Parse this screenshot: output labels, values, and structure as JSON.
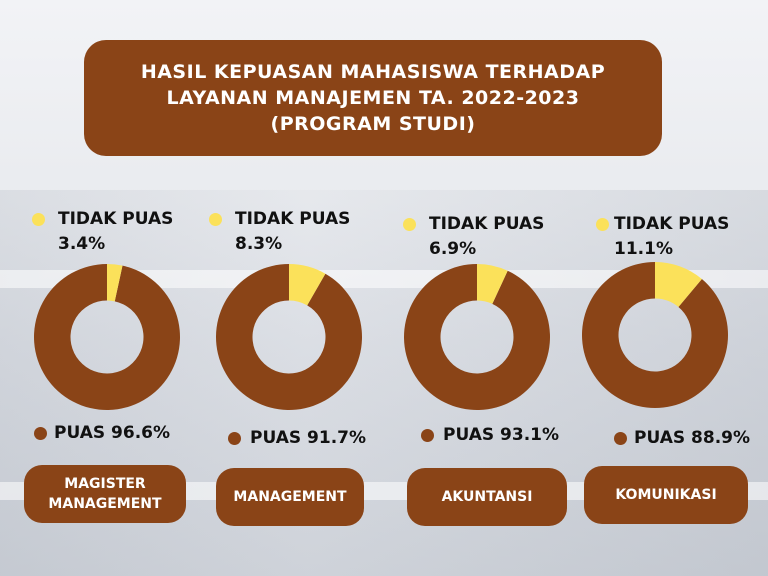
{
  "title": {
    "lines": [
      "HASIL KEPUASAN MAHASISWA TERHADAP",
      "LAYANAN MANAJEMEN TA. 2022-2023",
      "(PROGRAM STUDI)"
    ]
  },
  "colors": {
    "puas": "#8a4417",
    "tidak_puas": "#fbe15a",
    "box": "#8a4417"
  },
  "chart_data": [
    {
      "type": "pie",
      "category": "MAGISTER MANAGEMENT",
      "category_lines": [
        "MAGISTER",
        "MANAGEMENT"
      ],
      "slices": [
        {
          "name": "PUAS",
          "value": 96.6,
          "label": "PUAS 96.6%"
        },
        {
          "name": "TIDAK PUAS",
          "value": 3.4,
          "label": "3.4%"
        }
      ]
    },
    {
      "type": "pie",
      "category": "MANAGEMENT",
      "category_lines": [
        "MANAGEMENT"
      ],
      "slices": [
        {
          "name": "PUAS",
          "value": 91.7,
          "label": "PUAS 91.7%"
        },
        {
          "name": "TIDAK PUAS",
          "value": 8.3,
          "label": "8.3%"
        }
      ]
    },
    {
      "type": "pie",
      "category": "AKUNTANSI",
      "category_lines": [
        "AKUNTANSI"
      ],
      "slices": [
        {
          "name": "PUAS",
          "value": 93.1,
          "label": "PUAS 93.1%"
        },
        {
          "name": "TIDAK PUAS",
          "value": 6.9,
          "label": "6.9%"
        }
      ]
    },
    {
      "type": "pie",
      "category": "KOMUNIKASI",
      "category_lines": [
        "KOMUNIKASI"
      ],
      "slices": [
        {
          "name": "PUAS",
          "value": 88.9,
          "label": "PUAS 88.9%"
        },
        {
          "name": "TIDAK PUAS",
          "value": 11.1,
          "label": "11.1%"
        }
      ]
    }
  ],
  "legend": {
    "tidak_puas_label": "TIDAK PUAS"
  }
}
